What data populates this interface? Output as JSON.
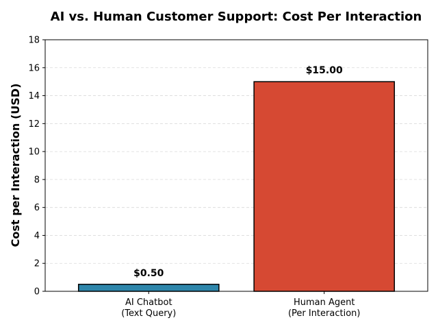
{
  "chart_data": {
    "type": "bar",
    "title": "AI vs. Human Customer Support: Cost Per Interaction",
    "xlabel": "",
    "ylabel": "Cost per Interaction (USD)",
    "categories": [
      [
        "AI Chatbot",
        "(Text Query)"
      ],
      [
        "Human Agent",
        "(Per Interaction)"
      ]
    ],
    "values": [
      0.5,
      15.0
    ],
    "data_labels": [
      "$0.50",
      "$15.00"
    ],
    "colors": [
      "#2e86ab",
      "#d64933"
    ],
    "edge_color": "#000000",
    "ylim": [
      0,
      18
    ],
    "yticks": [
      0,
      2,
      4,
      6,
      8,
      10,
      12,
      14,
      16,
      18
    ],
    "grid": "y-dashed",
    "legend": "none"
  }
}
